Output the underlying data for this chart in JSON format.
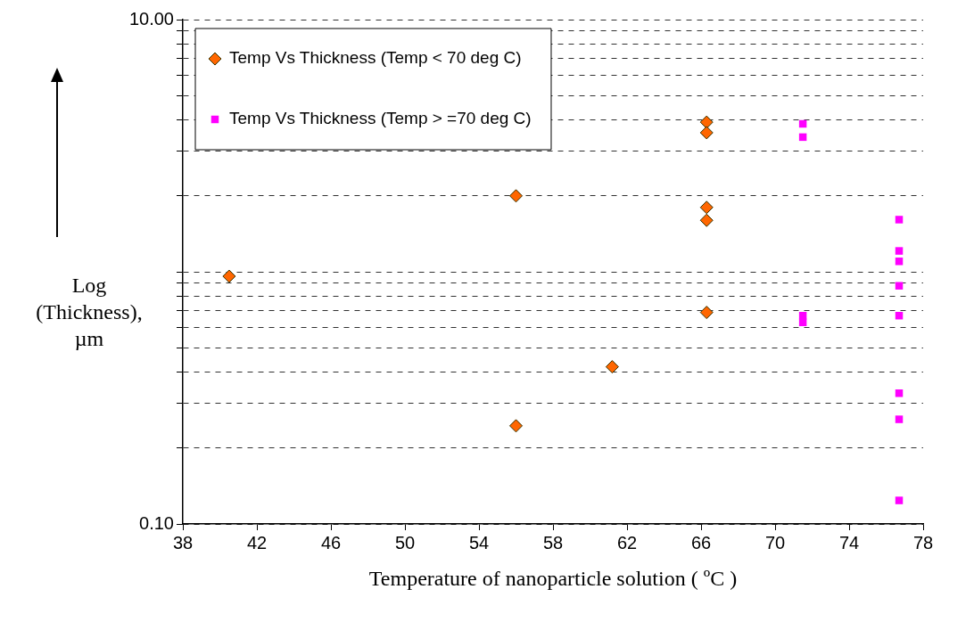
{
  "chart_data": {
    "type": "scatter",
    "xlabel": "Temperature of nanoparticle solution ( ºC )",
    "ylabel": "Log (Thickness), µm",
    "xlim": [
      38,
      78
    ],
    "xticks": [
      38,
      42,
      46,
      50,
      54,
      58,
      62,
      66,
      70,
      74,
      78
    ],
    "ylim": [
      0.1,
      10
    ],
    "log": "y",
    "yticks": [
      {
        "value": 0.1,
        "label": "0.10"
      },
      {
        "value": 0.2,
        "label": null
      },
      {
        "value": 0.3,
        "label": null
      },
      {
        "value": 0.4,
        "label": null
      },
      {
        "value": 0.5,
        "label": null
      },
      {
        "value": 0.6,
        "label": null
      },
      {
        "value": 0.7,
        "label": null
      },
      {
        "value": 0.8,
        "label": null
      },
      {
        "value": 0.9,
        "label": null
      },
      {
        "value": 1,
        "label": null
      },
      {
        "value": 2,
        "label": null
      },
      {
        "value": 3,
        "label": null
      },
      {
        "value": 4,
        "label": null
      },
      {
        "value": 5,
        "label": null
      },
      {
        "value": 6,
        "label": null
      },
      {
        "value": 7,
        "label": null
      },
      {
        "value": 8,
        "label": null
      },
      {
        "value": 9,
        "label": null
      },
      {
        "value": 10,
        "label": "10.00"
      }
    ],
    "grid": "y",
    "legend": "top left",
    "series": [
      {
        "name": "Temp Vs Thickness (Temp < 70 deg C)",
        "color": "#ff6600",
        "marker": "diamond",
        "x": [
          40.5,
          56,
          56,
          61.2,
          66.3,
          66.3,
          66.3,
          66.3,
          66.3
        ],
        "values": [
          0.96,
          2.0,
          0.245,
          0.42,
          3.92,
          3.56,
          1.8,
          1.6,
          0.69
        ]
      },
      {
        "name": "Temp Vs Thickness (Temp > =70 deg C)",
        "color": "#ff00ff",
        "marker": "square",
        "x": [
          71.5,
          71.5,
          71.5,
          71.5,
          76.7,
          76.7,
          76.7,
          76.7,
          76.7,
          76.7,
          76.7,
          76.7
        ],
        "values": [
          3.86,
          3.42,
          0.67,
          0.63,
          1.61,
          1.21,
          1.1,
          0.88,
          0.67,
          0.33,
          0.26,
          0.124
        ]
      }
    ]
  }
}
